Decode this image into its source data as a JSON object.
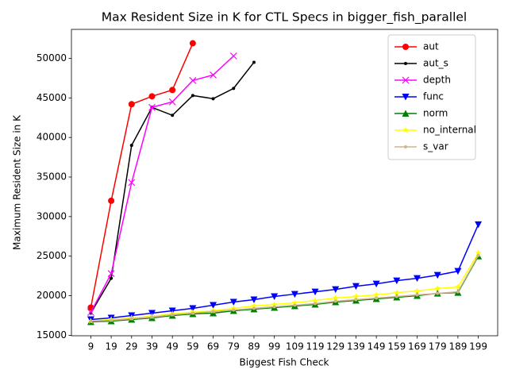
{
  "chart_data": {
    "type": "line",
    "title": "Max Resident Size in K for CTL Specs in bigger_fish_parallel",
    "x_label": "Biggest Fish Check",
    "y_label": "Maximum Resident Size in K",
    "x": [
      9,
      19,
      29,
      39,
      49,
      59,
      69,
      79,
      89,
      99,
      109,
      119,
      129,
      139,
      149,
      159,
      169,
      179,
      189,
      199
    ],
    "xlim": [
      -0.5,
      208.5
    ],
    "xticks": [
      9,
      19,
      29,
      39,
      49,
      59,
      69,
      79,
      89,
      99,
      109,
      119,
      129,
      139,
      149,
      159,
      169,
      179,
      189,
      199
    ],
    "ylim": [
      14940,
      53660
    ],
    "yticks": [
      15000,
      20000,
      25000,
      30000,
      35000,
      40000,
      45000,
      50000
    ],
    "legend": "upper right",
    "series": [
      {
        "name": "aut",
        "color": "red",
        "marker": "circle",
        "values": [
          18500,
          32000,
          44200,
          45200,
          46000,
          51900,
          null,
          null,
          null,
          null,
          null,
          null,
          null,
          null,
          null,
          null,
          null,
          null,
          null,
          null
        ]
      },
      {
        "name": "aut_s",
        "color": "black",
        "marker": "point",
        "values": [
          17800,
          22200,
          39000,
          43800,
          42800,
          45300,
          44900,
          46200,
          49500,
          null,
          null,
          null,
          null,
          null,
          null,
          null,
          null,
          null,
          null,
          null
        ]
      },
      {
        "name": "depth",
        "color": "magenta",
        "marker": "x",
        "values": [
          17900,
          22800,
          34300,
          43800,
          44500,
          47200,
          47900,
          50300,
          null,
          null,
          null,
          null,
          null,
          null,
          null,
          null,
          null,
          null,
          null,
          null
        ]
      },
      {
        "name": "func",
        "color": "blue",
        "marker": "triangle-down",
        "values": [
          17000,
          17200,
          17500,
          17800,
          18100,
          18400,
          18800,
          19200,
          19500,
          19900,
          20200,
          20500,
          20800,
          21200,
          21500,
          21900,
          22200,
          22600,
          23100,
          29000
        ]
      },
      {
        "name": "norm",
        "color": "green",
        "marker": "triangle-up",
        "values": [
          16700,
          16800,
          17000,
          17200,
          17500,
          17700,
          17800,
          18100,
          18300,
          18500,
          18700,
          18900,
          19200,
          19400,
          19600,
          19800,
          20000,
          20300,
          20400,
          25000
        ]
      },
      {
        "name": "no_internal",
        "color": "yellow",
        "marker": "star",
        "values": [
          16800,
          17000,
          17200,
          17400,
          17700,
          17900,
          18100,
          18400,
          18700,
          18900,
          19100,
          19400,
          19700,
          19900,
          20100,
          20400,
          20600,
          20900,
          21100,
          25400
        ]
      },
      {
        "name": "s_var",
        "color": "tan",
        "marker": "point",
        "values": [
          16800,
          16900,
          17100,
          17300,
          17600,
          17800,
          18000,
          18200,
          18400,
          18600,
          18800,
          19000,
          19300,
          19500,
          19700,
          19900,
          20100,
          20300,
          20500,
          25100
        ]
      }
    ]
  }
}
